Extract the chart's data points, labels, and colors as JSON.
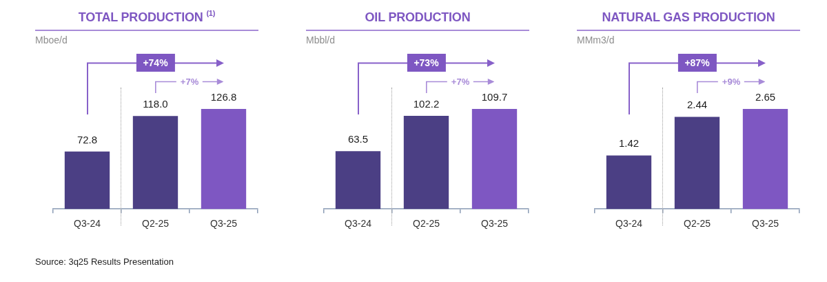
{
  "chart_data": [
    {
      "type": "bar",
      "title": "TOTAL PRODUCTION $^{(1)}$",
      "ylabel": "Mboe/d",
      "categories": [
        "Q3-24",
        "Q2-25",
        "Q3-25"
      ],
      "values": [
        72.8,
        118.0,
        126.8
      ],
      "value_labels": [
        "72.8",
        "118.0",
        "126.8"
      ],
      "colors": [
        "#4b3f84",
        "#4b3f84",
        "#7e57c2"
      ],
      "tick_labels": "x",
      "annotations": [
        "+74%",
        "+7%",
        "Source: 3q25 Results Presentation"
      ]
    },
    {
      "type": "bar",
      "title": "OIL PRODUCTION",
      "ylabel": "Mbbl/d",
      "categories": [
        "Q3-24",
        "Q2-25",
        "Q3-25"
      ],
      "values": [
        63.5,
        102.2,
        109.7
      ],
      "data_labels": true,
      "colors": [
        "#4b3f84",
        "#4b3f84",
        "#7e57c2"
      ],
      "tick_labels": "x",
      "annotations": [
        "+73%",
        "+7%"
      ]
    },
    {
      "type": "bar",
      "title": "NATURAL GAS PRODUCTION",
      "ylabel": "MMm3/d",
      "categories": [
        "Q3-24",
        "Q2-25",
        "Q3-25"
      ],
      "values": [
        1.42,
        2.44,
        2.65
      ],
      "data_labels": true,
      "colors": [
        "#4b3f84",
        "#4b3f84",
        "#7e57c2"
      ],
      "tick_labels": "x",
      "annotations": [
        "+87%",
        "+9%"
      ]
    }
  ]
}
